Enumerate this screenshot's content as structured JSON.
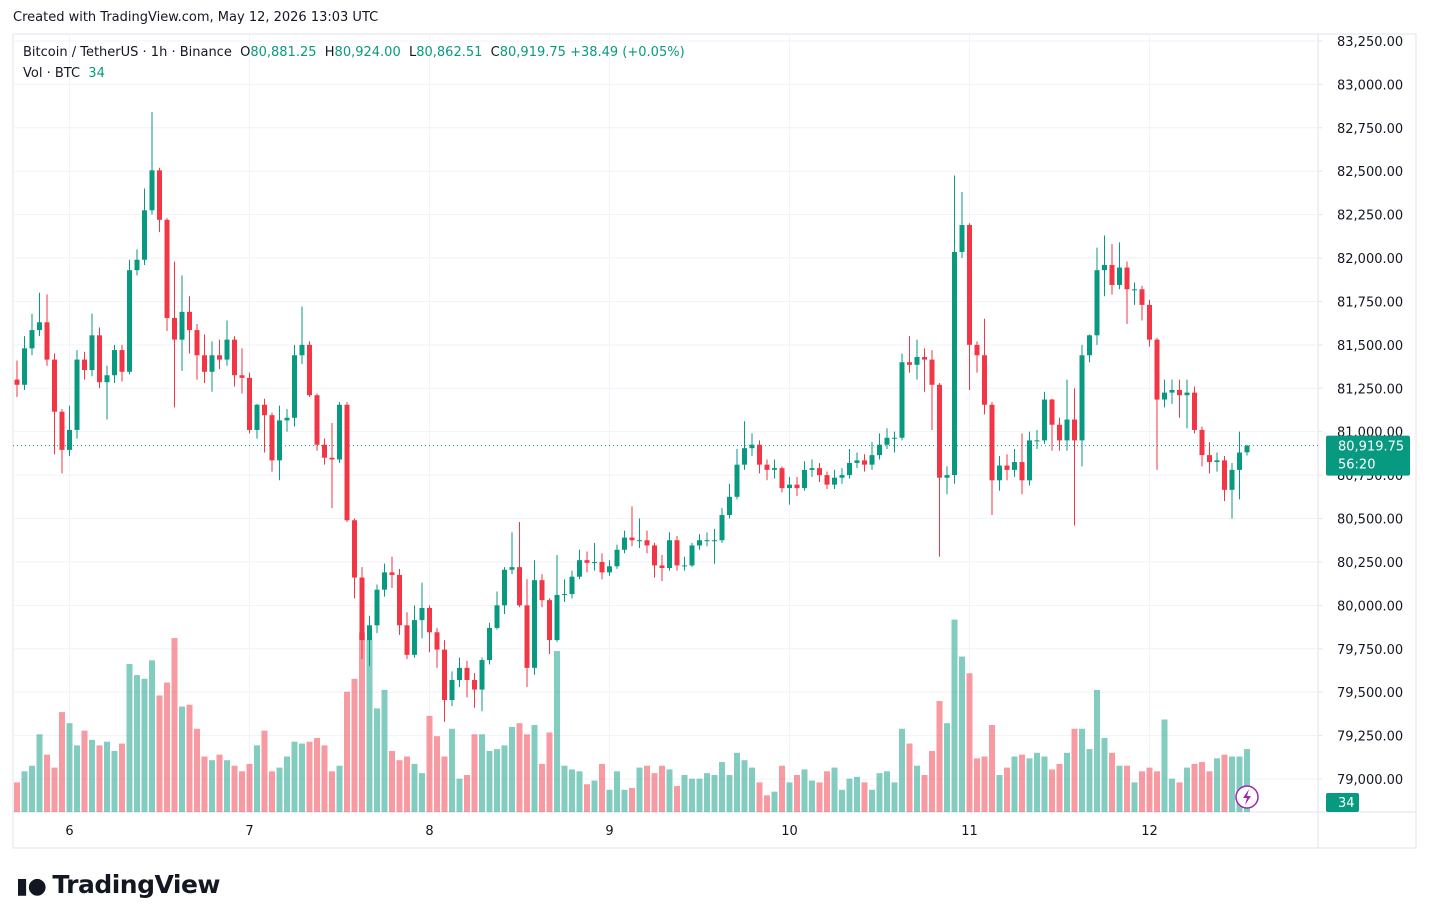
{
  "header": {
    "created": "Created with TradingView.com, May 12, 2026 13:03 UTC",
    "symbol": "Bitcoin / TetherUS · 1h · Binance",
    "ohlc": [
      {
        "key": "O",
        "value": "80,881.25"
      },
      {
        "key": "H",
        "value": "80,924.00"
      },
      {
        "key": "L",
        "value": "80,862.51"
      },
      {
        "key": "C",
        "value": "80,919.75"
      }
    ],
    "change": "+38.49 (+0.05%)",
    "volume_label": "Vol · BTC"
  },
  "brand": "TradingView",
  "chart_data": {
    "type": "candlestick",
    "up_color": "#089981",
    "down_color": "#f23645",
    "grid": true,
    "ylim": [
      78810,
      83290
    ],
    "yticks": [
      {
        "value": 79000,
        "label": "79,000.00"
      },
      {
        "value": 79250,
        "label": "79,250.00"
      },
      {
        "value": 79500,
        "label": "79,500.00"
      },
      {
        "value": 79750,
        "label": "79,750.00"
      },
      {
        "value": 80000,
        "label": "80,000.00"
      },
      {
        "value": 80250,
        "label": "80,250.00"
      },
      {
        "value": 80500,
        "label": "80,500.00"
      },
      {
        "value": 80750,
        "label": "80,750.00"
      },
      {
        "value": 81000,
        "label": "81,000.00"
      },
      {
        "value": 81250,
        "label": "81,250.00"
      },
      {
        "value": 81500,
        "label": "81,500.00"
      },
      {
        "value": 81750,
        "label": "81,750.00"
      },
      {
        "value": 82000,
        "label": "82,000.00"
      },
      {
        "value": 82250,
        "label": "82,250.00"
      },
      {
        "value": 82500,
        "label": "82,500.00"
      },
      {
        "value": 82750,
        "label": "82,750.00"
      },
      {
        "value": 83000,
        "label": "83,000.00"
      },
      {
        "value": 83250,
        "label": "83,250.00"
      }
    ],
    "xticks": [
      {
        "value": 7,
        "label": "6"
      },
      {
        "value": 31,
        "label": "7"
      },
      {
        "value": 55,
        "label": "8"
      },
      {
        "value": 79,
        "label": "9"
      },
      {
        "value": 103,
        "label": "10"
      },
      {
        "value": 127,
        "label": "11"
      },
      {
        "value": 151,
        "label": "12"
      }
    ],
    "last_price": {
      "value": 80919.75,
      "label": "80,919.75"
    },
    "countdown": "56:20",
    "open": [
      81300,
      81270,
      81480,
      81585,
      81630,
      81415,
      81115,
      80895,
      81010,
      81415,
      81355,
      81555,
      81285,
      81325,
      81470,
      81345,
      81930,
      81990,
      82275,
      82505,
      82220,
      81655,
      81530,
      81690,
      81585,
      81440,
      81345,
      81440,
      81415,
      81530,
      81325,
      81310,
      81010,
      81155,
      81095,
      80835,
      81065,
      81080,
      81440,
      81500,
      81210,
      80925,
      80850,
      80840,
      81155,
      80490,
      80160,
      79800,
      79885,
      80090,
      80190,
      80175,
      79885,
      79715,
      79915,
      79985,
      79845,
      79745,
      79455,
      79570,
      79640,
      79570,
      79515,
      79685,
      79870,
      80000,
      80205,
      80220,
      80000,
      79640,
      80145,
      80030,
      79800,
      80060,
      80065,
      80165,
      80260,
      80245,
      80250,
      80190,
      80225,
      80320,
      80390,
      80375,
      80375,
      80345,
      80230,
      80215,
      80375,
      80230,
      80230,
      80345,
      80375,
      80375,
      80375,
      80520,
      80625,
      80810,
      80905,
      80925,
      80810,
      80780,
      80790,
      80675,
      80695,
      80675,
      80780,
      80790,
      80750,
      80695,
      80735,
      80750,
      80820,
      80835,
      80810,
      80865,
      80925,
      80965,
      80965,
      81400,
      81385,
      81430,
      81415,
      81270,
      80735,
      80750,
      82035,
      82190,
      81500,
      81440,
      81155,
      80720,
      80805,
      80780,
      80825,
      80720,
      80950,
      80950,
      81185,
      81040,
      80950,
      81070,
      80950,
      81440,
      81555,
      81930,
      81960,
      81845,
      81945,
      81820,
      81820,
      81730,
      81530,
      81185,
      81225,
      81240,
      81210,
      81225,
      81010,
      80865,
      80825,
      80835,
      80665,
      80780,
      80881.25
    ],
    "high": [
      81410,
      81550,
      81680,
      81800,
      81790,
      81450,
      81130,
      81150,
      81470,
      81460,
      81680,
      81600,
      81380,
      81500,
      81500,
      81990,
      82050,
      82400,
      82840,
      82520,
      82230,
      81980,
      81900,
      81780,
      81620,
      81560,
      81520,
      81530,
      81640,
      81550,
      81480,
      81340,
      81160,
      81190,
      81110,
      81150,
      81130,
      81500,
      81720,
      81520,
      81220,
      80960,
      81050,
      81170,
      81170,
      80500,
      80220,
      79940,
      80120,
      80240,
      80280,
      80210,
      79960,
      80000,
      80130,
      80000,
      79870,
      79800,
      79620,
      79700,
      79680,
      79610,
      79700,
      79900,
      80080,
      80220,
      80420,
      80480,
      80150,
      80260,
      80180,
      80040,
      80290,
      80150,
      80200,
      80320,
      80310,
      80360,
      80300,
      80260,
      80350,
      80430,
      80570,
      80500,
      80430,
      80360,
      80290,
      80420,
      80400,
      80280,
      80360,
      80410,
      80420,
      80440,
      80560,
      80700,
      80900,
      81060,
      80990,
      80950,
      80840,
      80840,
      80800,
      80740,
      80740,
      80830,
      80840,
      80820,
      80770,
      80780,
      80790,
      80900,
      80880,
      80870,
      80940,
      80990,
      81020,
      81000,
      81450,
      81550,
      81530,
      81480,
      81470,
      81280,
      80800,
      82475,
      82380,
      82200,
      81520,
      81650,
      81170,
      80860,
      80870,
      80900,
      80990,
      81000,
      81010,
      81230,
      81190,
      81080,
      81300,
      81250,
      81500,
      81560,
      82060,
      82130,
      82080,
      82090,
      81980,
      81860,
      81840,
      81760,
      81540,
      81300,
      81300,
      81300,
      81300,
      81260,
      81030,
      80940,
      80880,
      80860,
      80820,
      81000,
      80924
    ],
    "low": [
      81200,
      81240,
      81440,
      81550,
      81380,
      80870,
      80760,
      80860,
      80960,
      81300,
      81320,
      81250,
      81070,
      81280,
      81290,
      81330,
      81900,
      81960,
      82250,
      82150,
      81580,
      81140,
      81350,
      81450,
      81300,
      81280,
      81230,
      81360,
      81380,
      81260,
      81220,
      80990,
      80960,
      80880,
      80770,
      80720,
      81000,
      81030,
      81390,
      81200,
      80890,
      80810,
      80560,
      80820,
      80480,
      80040,
      79690,
      79650,
      79840,
      80050,
      80100,
      79830,
      79690,
      79700,
      79810,
      79730,
      79640,
      79330,
      79420,
      79530,
      79470,
      79410,
      79390,
      79660,
      79860,
      79950,
      80180,
      79990,
      79530,
      79600,
      79990,
      79720,
      79790,
      80020,
      80040,
      80150,
      80190,
      80200,
      80150,
      80170,
      80210,
      80300,
      80340,
      80330,
      80300,
      80160,
      80140,
      80200,
      80200,
      80200,
      80220,
      80320,
      80340,
      80240,
      80360,
      80500,
      80610,
      80780,
      80860,
      80760,
      80720,
      80730,
      80650,
      80580,
      80630,
      80660,
      80740,
      80710,
      80670,
      80670,
      80700,
      80730,
      80790,
      80770,
      80780,
      80840,
      80900,
      80880,
      80950,
      81340,
      81300,
      81230,
      81010,
      80280,
      80640,
      80700,
      82000,
      81240,
      81340,
      81100,
      80520,
      80660,
      80720,
      80740,
      80640,
      80690,
      80900,
      80930,
      80890,
      80890,
      80890,
      80460,
      80800,
      81400,
      81500,
      81780,
      81790,
      81820,
      81620,
      81730,
      81640,
      81490,
      80780,
      81140,
      81160,
      81080,
      81020,
      80990,
      80800,
      80760,
      80770,
      80600,
      80500,
      80610,
      80862.51
    ],
    "close": [
      81270,
      81480,
      81585,
      81630,
      81415,
      81115,
      80895,
      81010,
      81415,
      81355,
      81555,
      81285,
      81325,
      81470,
      81345,
      81930,
      81990,
      82275,
      82505,
      82220,
      81655,
      81530,
      81690,
      81585,
      81440,
      81345,
      81440,
      81415,
      81530,
      81325,
      81310,
      81010,
      81155,
      81095,
      80835,
      81065,
      81080,
      81440,
      81500,
      81210,
      80925,
      80850,
      80840,
      81155,
      80490,
      80160,
      79800,
      79885,
      80090,
      80190,
      80175,
      79885,
      79715,
      79915,
      79985,
      79845,
      79745,
      79455,
      79570,
      79640,
      79570,
      79515,
      79685,
      79870,
      80000,
      80205,
      80220,
      80000,
      79640,
      80145,
      80030,
      79800,
      80060,
      80065,
      80165,
      80260,
      80245,
      80250,
      80190,
      80225,
      80320,
      80390,
      80375,
      80375,
      80345,
      80230,
      80215,
      80375,
      80230,
      80230,
      80345,
      80375,
      80375,
      80375,
      80520,
      80625,
      80810,
      80905,
      80925,
      80810,
      80780,
      80790,
      80675,
      80695,
      80675,
      80780,
      80790,
      80750,
      80695,
      80735,
      80750,
      80820,
      80835,
      80810,
      80865,
      80925,
      80965,
      80965,
      81400,
      81385,
      81430,
      81415,
      81270,
      80735,
      80750,
      82035,
      82190,
      81500,
      81440,
      81155,
      80720,
      80805,
      80780,
      80825,
      80720,
      80950,
      80950,
      81185,
      81040,
      80950,
      81070,
      80950,
      81440,
      81555,
      81930,
      81960,
      81845,
      81945,
      81820,
      81820,
      81730,
      81530,
      81185,
      81225,
      81240,
      81210,
      81225,
      81010,
      80865,
      80825,
      80835,
      80665,
      80780,
      80880,
      80919.75
    ],
    "volume": [
      16,
      22,
      25,
      42,
      31,
      24,
      54,
      48,
      36,
      44,
      39,
      36,
      38,
      33,
      37,
      80,
      74,
      72,
      82,
      63,
      70,
      94,
      57,
      58,
      45,
      30,
      28,
      31,
      28,
      25,
      22,
      26,
      36,
      44,
      22,
      24,
      30,
      38,
      37,
      38,
      40,
      36,
      22,
      25,
      65,
      72,
      97,
      93,
      56,
      66,
      33,
      28,
      30,
      26,
      21,
      52,
      41,
      30,
      45,
      18,
      20,
      42,
      42,
      33,
      34,
      36,
      46,
      48,
      42,
      47,
      26,
      43,
      87,
      25,
      23,
      22,
      15,
      17,
      26,
      12,
      22,
      12,
      13,
      24,
      25,
      21,
      25,
      23,
      14,
      20,
      18,
      18,
      21,
      20,
      27,
      20,
      32,
      28,
      24,
      16,
      9,
      11,
      25,
      16,
      20,
      23,
      17,
      16,
      22,
      24,
      12,
      18,
      19,
      16,
      12,
      21,
      22,
      16,
      45,
      37,
      25,
      20,
      33,
      60,
      48,
      104,
      84,
      75,
      29,
      30,
      47,
      20,
      24,
      30,
      31,
      29,
      32,
      30,
      23,
      26,
      32,
      45,
      45,
      34,
      66,
      40,
      32,
      25,
      25,
      16,
      22,
      24,
      22,
      50,
      18,
      16,
      24,
      26,
      27,
      22,
      29,
      31,
      30,
      30,
      34
    ]
  }
}
